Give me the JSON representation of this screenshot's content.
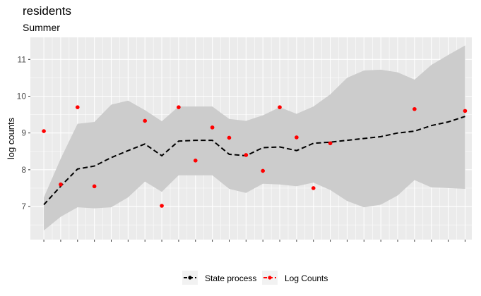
{
  "chart_data": {
    "type": "line",
    "title": "residents",
    "subtitle": "Summer",
    "xlabel": "",
    "ylabel": "log counts",
    "ylim": [
      6.1,
      11.6
    ],
    "yticks": [
      7,
      8,
      9,
      10,
      11
    ],
    "x": [
      1,
      2,
      3,
      4,
      5,
      6,
      7,
      8,
      9,
      10,
      11,
      12,
      13,
      14,
      15,
      16,
      17,
      18,
      19,
      20,
      21,
      22,
      23,
      24,
      25,
      26
    ],
    "series": [
      {
        "name": "State process",
        "style": "dashed",
        "color": "#000000",
        "values": [
          7.05,
          7.55,
          8.02,
          8.1,
          8.33,
          8.52,
          8.7,
          8.38,
          8.78,
          8.8,
          8.8,
          8.42,
          8.38,
          8.6,
          8.62,
          8.52,
          8.72,
          8.75,
          8.8,
          8.85,
          8.9,
          9.0,
          9.05,
          9.2,
          9.3,
          9.45
        ]
      },
      {
        "name": "Log Counts",
        "style": "points",
        "color": "#ff0000",
        "values": [
          9.05,
          7.6,
          9.7,
          7.55,
          null,
          null,
          9.33,
          7.02,
          9.7,
          8.25,
          9.15,
          8.87,
          8.4,
          7.97,
          9.7,
          8.88,
          7.5,
          8.72,
          null,
          null,
          null,
          null,
          9.65,
          null,
          null,
          9.6
        ]
      }
    ],
    "band": {
      "upper": [
        7.25,
        8.3,
        9.25,
        9.3,
        9.77,
        9.88,
        9.62,
        9.32,
        9.72,
        9.72,
        9.72,
        9.38,
        9.33,
        9.48,
        9.7,
        9.52,
        9.72,
        10.05,
        10.5,
        10.7,
        10.72,
        10.65,
        10.45,
        10.85,
        11.12,
        11.38
      ],
      "lower": [
        6.35,
        6.72,
        6.98,
        6.95,
        6.98,
        7.25,
        7.68,
        7.4,
        7.85,
        7.85,
        7.85,
        7.48,
        7.37,
        7.62,
        7.6,
        7.55,
        7.65,
        7.45,
        7.15,
        6.98,
        7.05,
        7.3,
        7.72,
        7.52,
        7.5,
        7.48
      ],
      "color": "#cccccc"
    },
    "grid": true,
    "panel_color": "#ebebeb",
    "legend_position": "bottom"
  }
}
